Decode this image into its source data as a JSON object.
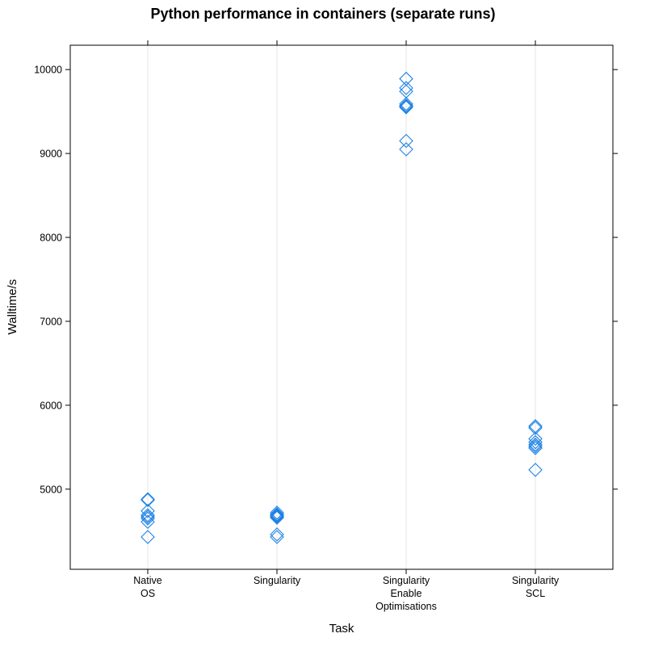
{
  "chart_data": {
    "type": "scatter",
    "title": "Python performance in containers (separate runs)",
    "xlabel": "Task",
    "ylabel": "Walltime/s",
    "yticks": [
      5000,
      6000,
      7000,
      8000,
      9000,
      10000
    ],
    "ylim": [
      4045,
      10290
    ],
    "grid": "vertical lines at categories",
    "marker": "open diamond",
    "marker_color": "#1e82e6",
    "categories": [
      {
        "lines": [
          "Native",
          "OS"
        ],
        "values": [
          4880,
          4870,
          4740,
          4690,
          4670,
          4650,
          4610,
          4430
        ]
      },
      {
        "lines": [
          "Singularity"
        ],
        "values": [
          4720,
          4700,
          4690,
          4680,
          4670,
          4660,
          4460,
          4430
        ]
      },
      {
        "lines": [
          "Singularity",
          "Enable",
          "Optimisations"
        ],
        "values": [
          9890,
          9780,
          9740,
          9590,
          9570,
          9560,
          9550,
          9150,
          9050
        ]
      },
      {
        "lines": [
          "Singularity",
          "SCL"
        ],
        "values": [
          5750,
          5730,
          5600,
          5560,
          5530,
          5510,
          5490,
          5230
        ]
      }
    ]
  }
}
